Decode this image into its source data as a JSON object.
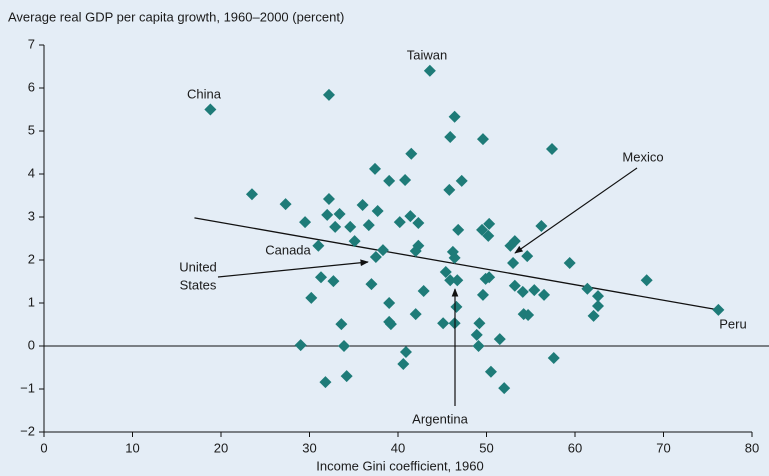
{
  "chart_data": {
    "type": "scatter",
    "title": "Average real GDP per capita growth, 1960–2000 (percent)",
    "x_label": "Income Gini coefficient, 1960",
    "color": "#1e7b78",
    "x": [
      18.8,
      43.6,
      32.2,
      46.4,
      45.9,
      49.6,
      57.4,
      41.5,
      37.4,
      39.0,
      40.8,
      47.2,
      45.8,
      23.5,
      27.3,
      32.2,
      36.0,
      37.7,
      32.0,
      33.4,
      41.4,
      29.5,
      40.2,
      42.3,
      32.9,
      34.6,
      36.7,
      46.8,
      50.3,
      49.5,
      50.2,
      56.2,
      53.2,
      52.7,
      35.1,
      31.0,
      38.3,
      42.3,
      42.0,
      46.2,
      46.4,
      54.6,
      53.0,
      37.5,
      59.4,
      45.4,
      45.9,
      46.7,
      49.9,
      50.3,
      31.3,
      32.7,
      37.0,
      53.2,
      54.1,
      55.4,
      56.5,
      61.4,
      62.6,
      42.9,
      49.6,
      30.2,
      39.0,
      46.6,
      62.6,
      54.2,
      54.7,
      62.1,
      42.0,
      39.0,
      39.2,
      33.6,
      45.1,
      46.4,
      49.2,
      48.9,
      51.5,
      29.0,
      33.9,
      49.1,
      40.9,
      57.6,
      40.6,
      50.5,
      34.2,
      31.8,
      52.0,
      68.1,
      76.2
    ],
    "values": [
      5.5,
      6.4,
      5.84,
      5.33,
      4.86,
      4.81,
      4.58,
      4.47,
      4.12,
      3.84,
      3.86,
      3.84,
      3.63,
      3.53,
      3.3,
      3.42,
      3.28,
      3.14,
      3.05,
      3.07,
      3.02,
      2.88,
      2.88,
      2.86,
      2.77,
      2.77,
      2.81,
      2.7,
      2.84,
      2.7,
      2.56,
      2.79,
      2.44,
      2.33,
      2.44,
      2.33,
      2.23,
      2.33,
      2.21,
      2.19,
      2.05,
      2.09,
      1.93,
      2.07,
      1.93,
      1.72,
      1.53,
      1.53,
      1.56,
      1.6,
      1.6,
      1.51,
      1.44,
      1.4,
      1.26,
      1.3,
      1.19,
      1.33,
      1.16,
      1.28,
      1.19,
      1.12,
      1.0,
      0.91,
      0.93,
      0.74,
      0.72,
      0.7,
      0.74,
      0.56,
      0.51,
      0.51,
      0.53,
      0.53,
      0.53,
      0.26,
      0.16,
      0.02,
      0.0,
      0.0,
      -0.14,
      -0.28,
      -0.42,
      -0.6,
      -0.7,
      -0.84,
      -0.98,
      1.53,
      0.84
    ],
    "trendline": {
      "x": [
        17,
        76.2
      ],
      "y": [
        2.98,
        0.84
      ]
    },
    "annotations": [
      {
        "lines": [
          "China"
        ]
      },
      {
        "lines": [
          "Taiwan"
        ]
      },
      {
        "lines": [
          "Mexico"
        ]
      },
      {
        "lines": [
          "Canada"
        ]
      },
      {
        "lines": [
          "United",
          "States"
        ]
      },
      {
        "lines": [
          "Peru"
        ]
      },
      {
        "lines": [
          "Argentina"
        ]
      }
    ],
    "xlim": [
      0,
      80
    ],
    "xticks": [
      0,
      10,
      20,
      30,
      40,
      50,
      60,
      70,
      80
    ],
    "ylim": [
      -2,
      7
    ],
    "yticks": [
      {
        "value": -2,
        "label": "−2"
      },
      {
        "value": -1,
        "label": "−1"
      },
      0,
      1,
      2,
      3,
      4,
      5,
      6,
      7
    ]
  }
}
